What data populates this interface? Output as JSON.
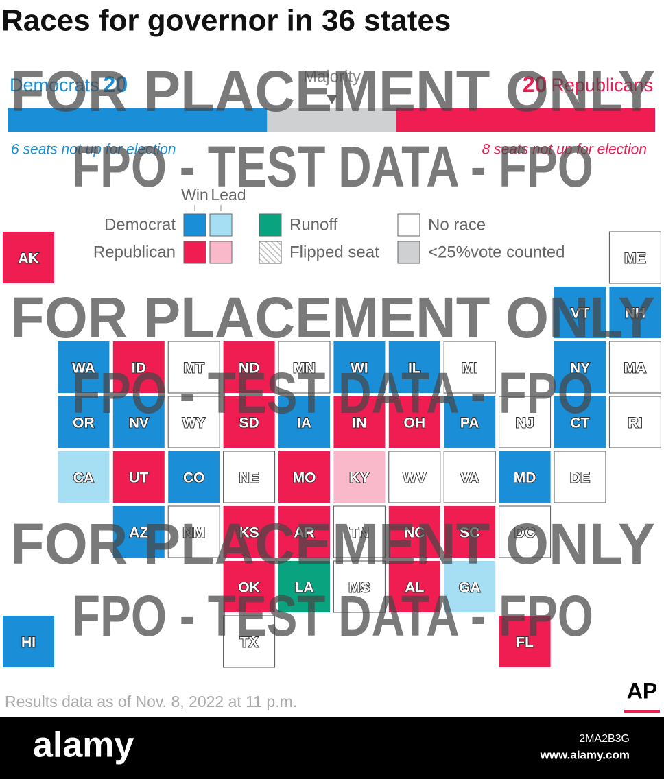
{
  "title": "Races for governor in 36 states",
  "balance": {
    "democrats": {
      "label": "Democrats",
      "seats": 20,
      "note": "6 seats not up for election",
      "color": "#1a8fd8"
    },
    "majority": "Majority",
    "undecided_color": "#cfd0d2",
    "republicans": {
      "label": "Republicans",
      "seats": 20,
      "note": "8 seats not up for election",
      "color": "#ef1d52"
    }
  },
  "legend": {
    "columns": [
      "Win",
      "Lead"
    ],
    "parties": [
      {
        "label": "Democrat",
        "colors": [
          "#1a8fd8",
          "#a6dff3"
        ]
      },
      {
        "label": "Republican",
        "colors": [
          "#ef1d52",
          "#f9b9ca"
        ]
      }
    ],
    "other": [
      {
        "label": "Runoff",
        "color": "#0aa37f"
      },
      {
        "label": "Flipped seat",
        "fill": "hatched"
      },
      {
        "label": "No race",
        "color": "#ffffff"
      },
      {
        "label": "<25%vote counted",
        "color": "#cfd0d2"
      }
    ]
  },
  "tiles": [
    {
      "label": "AK",
      "color": "#ef1d52"
    },
    {
      "label": "ME",
      "color": "#ffffff"
    },
    {
      "label": "VT",
      "color": "#1a8fd8"
    },
    {
      "label": "NH",
      "color": "#1a8fd8"
    },
    {
      "label": "WA",
      "color": "#1a8fd8"
    },
    {
      "label": "ID",
      "color": "#ef1d52"
    },
    {
      "label": "MT",
      "color": "#ffffff"
    },
    {
      "label": "ND",
      "color": "#ef1d52"
    },
    {
      "label": "MN",
      "color": "#ffffff"
    },
    {
      "label": "WI",
      "color": "#1a8fd8"
    },
    {
      "label": "IL",
      "color": "#1a8fd8"
    },
    {
      "label": "MI",
      "color": "#ffffff"
    },
    {
      "label": "NY",
      "color": "#1a8fd8"
    },
    {
      "label": "MA",
      "color": "#ffffff"
    },
    {
      "label": "OR",
      "color": "#1a8fd8"
    },
    {
      "label": "NV",
      "color": "#1a8fd8"
    },
    {
      "label": "WY",
      "color": "#ffffff"
    },
    {
      "label": "SD",
      "color": "#ef1d52"
    },
    {
      "label": "IA",
      "color": "#1a8fd8"
    },
    {
      "label": "IN",
      "color": "#ef1d52"
    },
    {
      "label": "OH",
      "color": "#ef1d52"
    },
    {
      "label": "PA",
      "color": "#1a8fd8"
    },
    {
      "label": "NJ",
      "color": "#ffffff"
    },
    {
      "label": "CT",
      "color": "#1a8fd8"
    },
    {
      "label": "RI",
      "color": "#ffffff"
    },
    {
      "label": "CA",
      "color": "#a6dff3"
    },
    {
      "label": "UT",
      "color": "#ef1d52"
    },
    {
      "label": "CO",
      "color": "#1a8fd8"
    },
    {
      "label": "NE",
      "color": "#ffffff"
    },
    {
      "label": "MO",
      "color": "#ef1d52"
    },
    {
      "label": "KY",
      "color": "#f9b9ca"
    },
    {
      "label": "WV",
      "color": "#ffffff"
    },
    {
      "label": "VA",
      "color": "#ffffff"
    },
    {
      "label": "MD",
      "color": "#1a8fd8"
    },
    {
      "label": "DE",
      "color": "#ffffff"
    },
    {
      "label": "AZ",
      "color": "#1a8fd8"
    },
    {
      "label": "NM",
      "color": "#ffffff"
    },
    {
      "label": "KS",
      "color": "#ef1d52"
    },
    {
      "label": "AR",
      "color": "#ef1d52"
    },
    {
      "label": "TN",
      "color": "#ffffff"
    },
    {
      "label": "NC",
      "color": "#ef1d52"
    },
    {
      "label": "SC",
      "color": "#ef1d52"
    },
    {
      "label": "DC",
      "color": "#ffffff"
    },
    {
      "label": "OK",
      "color": "#ef1d52"
    },
    {
      "label": "LA",
      "color": "#0aa37f"
    },
    {
      "label": "MS",
      "color": "#ffffff"
    },
    {
      "label": "AL",
      "color": "#ef1d52"
    },
    {
      "label": "GA",
      "color": "#a6dff3"
    },
    {
      "label": "HI",
      "color": "#1a8fd8"
    },
    {
      "label": "TX",
      "color": "#ffffff"
    },
    {
      "label": "FL",
      "color": "#ef1d52"
    }
  ],
  "footer": {
    "source": "Results data as of Nov. 8, 2022 at 11 p.m.",
    "logo": "AP"
  },
  "watermark": {
    "placement": "FOR PLACEMENT ONLY",
    "test": "FPO - TEST DATA - FPO"
  },
  "stock": {
    "brand": "alamy",
    "image_id": "2MA2B3G",
    "url": "www.alamy.com"
  }
}
